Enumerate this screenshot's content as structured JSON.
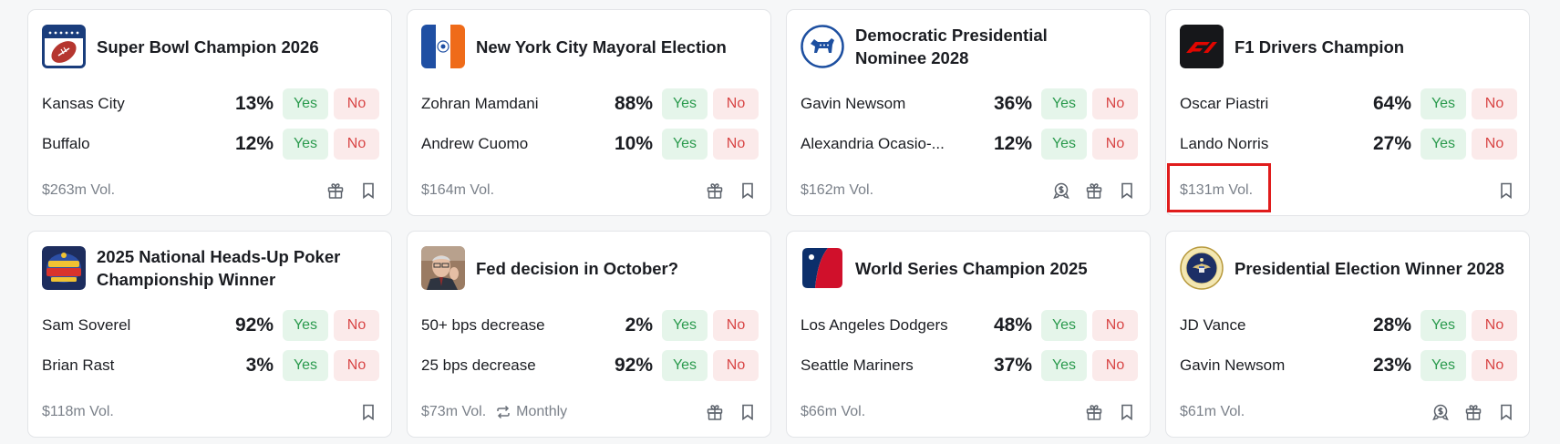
{
  "cards": [
    {
      "title": "Super Bowl Champion 2026",
      "logo": "football-logo",
      "options": [
        {
          "name": "Kansas City",
          "pct": "13%",
          "yes": "Yes",
          "no": "No"
        },
        {
          "name": "Buffalo",
          "pct": "12%",
          "yes": "Yes",
          "no": "No"
        }
      ],
      "volume": "$263m Vol.",
      "icons": [
        "gift-icon",
        "bookmark-icon"
      ]
    },
    {
      "title": "New York City Mayoral Election",
      "logo": "nyc-flag-logo",
      "options": [
        {
          "name": "Zohran Mamdani",
          "pct": "88%",
          "yes": "Yes",
          "no": "No"
        },
        {
          "name": "Andrew Cuomo",
          "pct": "10%",
          "yes": "Yes",
          "no": "No"
        }
      ],
      "volume": "$164m Vol.",
      "icons": [
        "gift-icon",
        "bookmark-icon"
      ]
    },
    {
      "title_line1": "Democratic Presidential",
      "title_line2": "Nominee 2028",
      "logo": "democratic-donkey-logo",
      "options": [
        {
          "name": "Gavin Newsom",
          "pct": "36%",
          "yes": "Yes",
          "no": "No"
        },
        {
          "name": "Alexandria Ocasio-...",
          "pct": "12%",
          "yes": "Yes",
          "no": "No"
        }
      ],
      "volume": "$162m Vol.",
      "icons": [
        "rewards-icon",
        "gift-icon",
        "bookmark-icon"
      ]
    },
    {
      "title": "F1 Drivers Champion",
      "logo": "f1-logo",
      "options": [
        {
          "name": "Oscar Piastri",
          "pct": "64%",
          "yes": "Yes",
          "no": "No"
        },
        {
          "name": "Lando Norris",
          "pct": "27%",
          "yes": "Yes",
          "no": "No"
        }
      ],
      "volume": "$131m Vol.",
      "icons": [
        "bookmark-icon"
      ]
    },
    {
      "title_line1": "2025 National Heads-Up Poker",
      "title_line2": "Championship Winner",
      "logo": "poker-logo",
      "options": [
        {
          "name": "Sam Soverel",
          "pct": "92%",
          "yes": "Yes",
          "no": "No"
        },
        {
          "name": "Brian Rast",
          "pct": "3%",
          "yes": "Yes",
          "no": "No"
        }
      ],
      "volume": "$118m Vol.",
      "icons": [
        "bookmark-icon"
      ]
    },
    {
      "title": "Fed decision in October?",
      "logo": "fed-chair-photo",
      "options": [
        {
          "name": "50+ bps decrease",
          "pct": "2%",
          "yes": "Yes",
          "no": "No"
        },
        {
          "name": "25 bps decrease",
          "pct": "92%",
          "yes": "Yes",
          "no": "No"
        }
      ],
      "volume": "$73m Vol.",
      "frequency": "Monthly",
      "icons": [
        "gift-icon",
        "bookmark-icon"
      ]
    },
    {
      "title": "World Series Champion 2025",
      "logo": "mlb-logo",
      "options": [
        {
          "name": "Los Angeles Dodgers",
          "pct": "48%",
          "yes": "Yes",
          "no": "No"
        },
        {
          "name": "Seattle Mariners",
          "pct": "37%",
          "yes": "Yes",
          "no": "No"
        }
      ],
      "volume": "$66m Vol.",
      "icons": [
        "gift-icon",
        "bookmark-icon"
      ]
    },
    {
      "title": "Presidential Election Winner 2028",
      "logo": "presidential-seal-logo",
      "options": [
        {
          "name": "JD Vance",
          "pct": "28%",
          "yes": "Yes",
          "no": "No"
        },
        {
          "name": "Gavin Newsom",
          "pct": "23%",
          "yes": "Yes",
          "no": "No"
        }
      ],
      "volume": "$61m Vol.",
      "icons": [
        "rewards-icon",
        "gift-icon",
        "bookmark-icon"
      ]
    }
  ],
  "colors": {
    "yes_bg": "#e5f5ea",
    "yes_text": "#2a9a4d",
    "no_bg": "#fbeaea",
    "no_text": "#d84545",
    "highlight": "#e01c1c"
  }
}
